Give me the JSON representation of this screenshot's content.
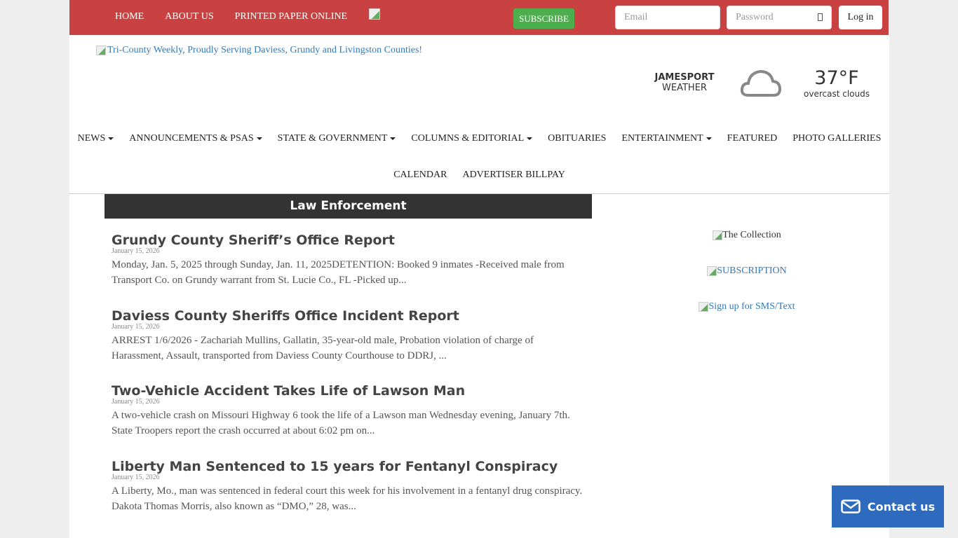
{
  "topbar": {
    "nav": [
      "HOME",
      "ABOUT US",
      "PRINTED PAPER ONLINE"
    ],
    "subscribe": "SUBSCRIBE",
    "email_placeholder": "Email",
    "password_placeholder": "Password",
    "login": "Log in",
    "color": "#c94141"
  },
  "logo_alt": "Tri-County Weekly, Proudly Serving Daviess, Grundy and Livingston Counties!",
  "weather": {
    "location": "JAMESPORT",
    "label": "WEATHER",
    "temp": "37°F",
    "desc": "overcast clouds",
    "icon": "cloud-icon"
  },
  "nav": {
    "row1": [
      {
        "label": "NEWS",
        "dropdown": true
      },
      {
        "label": "ANNOUNCEMENTS & PSAS",
        "dropdown": true
      },
      {
        "label": "STATE & GOVERNMENT",
        "dropdown": true
      },
      {
        "label": "COLUMNS & EDITORIAL",
        "dropdown": true
      },
      {
        "label": "OBITUARIES"
      },
      {
        "label": "ENTERTAINMENT",
        "dropdown": true
      },
      {
        "label": "FEATURED"
      },
      {
        "label": "PHOTO GALLERIES"
      }
    ],
    "row2": [
      {
        "label": "CALENDAR"
      },
      {
        "label": "ADVERTISER BILLPAY"
      }
    ]
  },
  "section": "Law Enforcement",
  "articles": [
    {
      "title": "Grundy County Sheriff’s Office Report",
      "date": "January 15, 2026",
      "excerpt": "Monday, Jan. 5, 2025 through Sunday, Jan. 11, 2025DETENTION: Booked 9 inmates    -Received male from Transport Co. on Grundy warrant from St. Lucie Co., FL   -Picked up..."
    },
    {
      "title": "Daviess County Sheriffs Office Incident Report",
      "date": "January 15, 2026",
      "excerpt": "ARREST 1/6/2026 - Zachariah Mullins, Gallatin, 35-year-old male, Probation violation of charge of Harassment, Assault, transported from Daviess County Courthouse to DDRJ, ..."
    },
    {
      "title": "Two-Vehicle Accident Takes Life of Lawson Man",
      "date": "January 15, 2026",
      "excerpt": "A two-vehicle crash on Missouri Highway 6 took the life of a Lawson man Wednesday evening, January 7th.  State Troopers report the crash occurred at about 6:02 pm on..."
    },
    {
      "title": "Liberty Man Sentenced to 15 years for Fentanyl Conspiracy",
      "date": "January 15, 2026",
      "excerpt": "A Liberty, Mo., man was sentenced in federal court this week for his involvement in a fentanyl drug conspiracy. Dakota Thomas Morris, also known as “DMO,” 28, was..."
    }
  ],
  "sidebar": [
    "The Collection",
    "SUBSCRIPTION",
    "Sign up for SMS/Text"
  ],
  "contact": "Contact us"
}
